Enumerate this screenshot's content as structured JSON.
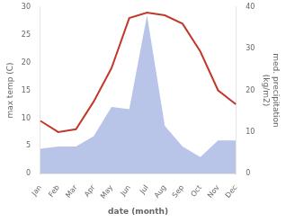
{
  "chart_data": {
    "type": "line",
    "xlabel": "date (month)",
    "ylabel": "max temp (C)",
    "y2label": "med. precipitation\n(kg/m2)",
    "categories": [
      "Jan",
      "Feb",
      "Mar",
      "Apr",
      "May",
      "Jun",
      "Jul",
      "Aug",
      "Sep",
      "Oct",
      "Nov",
      "Dec"
    ],
    "series": [
      {
        "type": "area",
        "axis": "y2",
        "color": "#b8c4e8",
        "values": [
          6.0,
          6.5,
          6.5,
          9.0,
          16.0,
          15.5,
          38.0,
          11.5,
          6.5,
          4.0,
          8.0,
          8.0
        ]
      },
      {
        "type": "line",
        "color": "#c0392b",
        "values": [
          9.5,
          7.5,
          8.0,
          13.0,
          19.0,
          28.0,
          29.0,
          28.5,
          27.0,
          22.0,
          15.0,
          12.5
        ]
      }
    ],
    "ylim": [
      0,
      30
    ],
    "yticks": [
      0,
      5,
      10,
      15,
      20,
      25,
      30
    ],
    "y2lim": [
      0,
      40
    ],
    "y2ticks": [
      0,
      10,
      20,
      30,
      40
    ],
    "grid": false
  }
}
